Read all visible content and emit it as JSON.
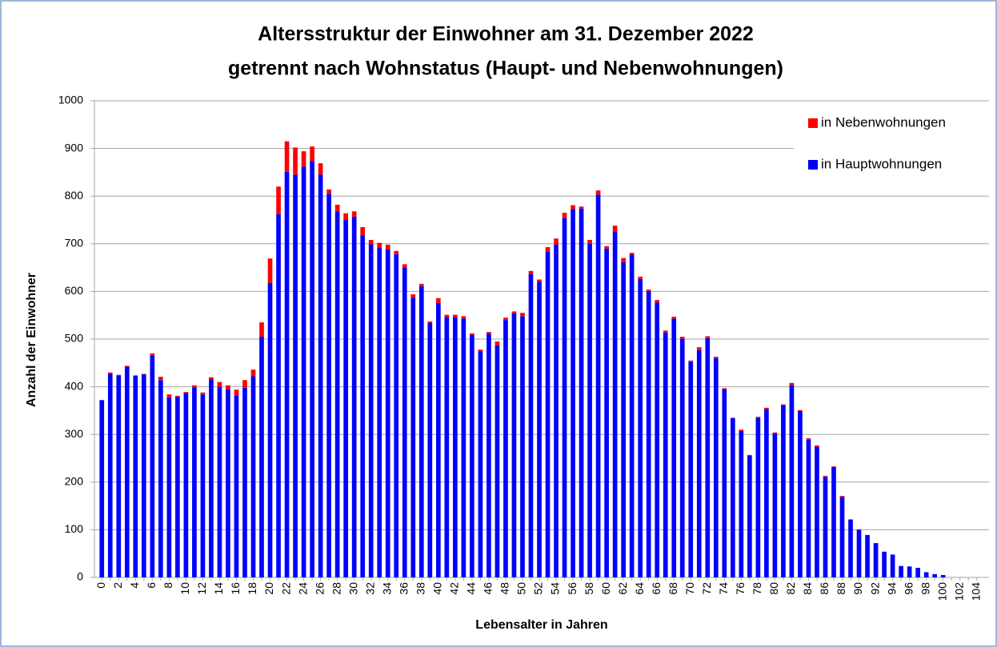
{
  "chart_data": {
    "type": "stacked_bar",
    "title": "Altersstruktur der Einwohner am 31. Dezember 2022",
    "subtitle": "getrennt nach Wohnstatus (Haupt- und Nebenwohnungen)",
    "x_label": "Lebensalter in Jahren",
    "y_label": "Anzahl der Einwohner",
    "categories": [
      "0",
      null,
      "2",
      null,
      "4",
      null,
      "6",
      null,
      "8",
      null,
      "10",
      null,
      "12",
      null,
      "14",
      null,
      "16",
      null,
      "18",
      null,
      "20",
      null,
      "22",
      null,
      "24",
      null,
      "26",
      null,
      "28",
      null,
      "30",
      null,
      "32",
      null,
      "34",
      null,
      "36",
      null,
      "38",
      null,
      "40",
      null,
      "42",
      null,
      "44",
      null,
      "46",
      null,
      "48",
      null,
      "50",
      null,
      "52",
      null,
      "54",
      null,
      "56",
      null,
      "58",
      null,
      "60",
      null,
      "62",
      null,
      "64",
      null,
      "66",
      null,
      "68",
      null,
      "70",
      null,
      "72",
      null,
      "74",
      null,
      "76",
      null,
      "78",
      null,
      "80",
      null,
      "82",
      null,
      "84",
      null,
      "86",
      null,
      "88",
      null,
      "90",
      null,
      "92",
      null,
      "94",
      null,
      "96",
      null,
      "98",
      null,
      "100",
      null,
      "102",
      null,
      "104"
    ],
    "series": [
      {
        "name": "in Hauptwohnungen",
        "color": "#0000ff",
        "values": [
          372,
          427,
          424,
          442,
          423,
          426,
          466,
          414,
          378,
          379,
          387,
          399,
          384,
          416,
          400,
          395,
          382,
          398,
          422,
          505,
          618,
          762,
          851,
          845,
          862,
          874,
          845,
          805,
          768,
          750,
          757,
          718,
          699,
          692,
          688,
          678,
          650,
          587,
          611,
          534,
          576,
          546,
          546,
          543,
          509,
          474,
          511,
          487,
          540,
          554,
          548,
          636,
          620,
          683,
          698,
          754,
          773,
          774,
          700,
          803,
          690,
          726,
          661,
          677,
          626,
          601,
          577,
          514,
          543,
          501,
          452,
          477,
          502,
          460,
          395,
          334,
          307,
          255,
          335,
          353,
          302,
          362,
          404,
          349,
          289,
          274,
          211,
          232,
          169,
          121,
          100,
          89,
          72,
          54,
          48,
          24,
          23,
          20,
          11,
          7,
          5,
          0,
          0,
          0,
          0
        ]
      },
      {
        "name": "in Nebenwohnungen",
        "color": "#ff0000",
        "values": [
          0,
          3,
          1,
          2,
          1,
          1,
          4,
          7,
          6,
          2,
          2,
          4,
          4,
          4,
          10,
          8,
          12,
          16,
          14,
          30,
          51,
          58,
          64,
          57,
          32,
          30,
          24,
          9,
          14,
          14,
          11,
          17,
          9,
          10,
          10,
          7,
          7,
          7,
          5,
          3,
          10,
          5,
          5,
          5,
          3,
          4,
          4,
          8,
          5,
          4,
          7,
          7,
          5,
          10,
          13,
          11,
          8,
          4,
          8,
          9,
          5,
          12,
          9,
          4,
          5,
          3,
          5,
          4,
          4,
          4,
          3,
          6,
          4,
          3,
          2,
          1,
          3,
          2,
          2,
          3,
          2,
          1,
          4,
          2,
          3,
          3,
          2,
          1,
          2,
          1,
          1,
          0,
          0,
          0,
          0,
          0,
          0,
          0,
          0,
          0,
          0,
          0,
          0,
          0,
          0
        ]
      }
    ],
    "ylim": [
      0,
      1000
    ],
    "yticks": [
      0,
      100,
      200,
      300,
      400,
      500,
      600,
      700,
      800,
      900,
      1000
    ],
    "grid": true,
    "legend": "upper right"
  }
}
